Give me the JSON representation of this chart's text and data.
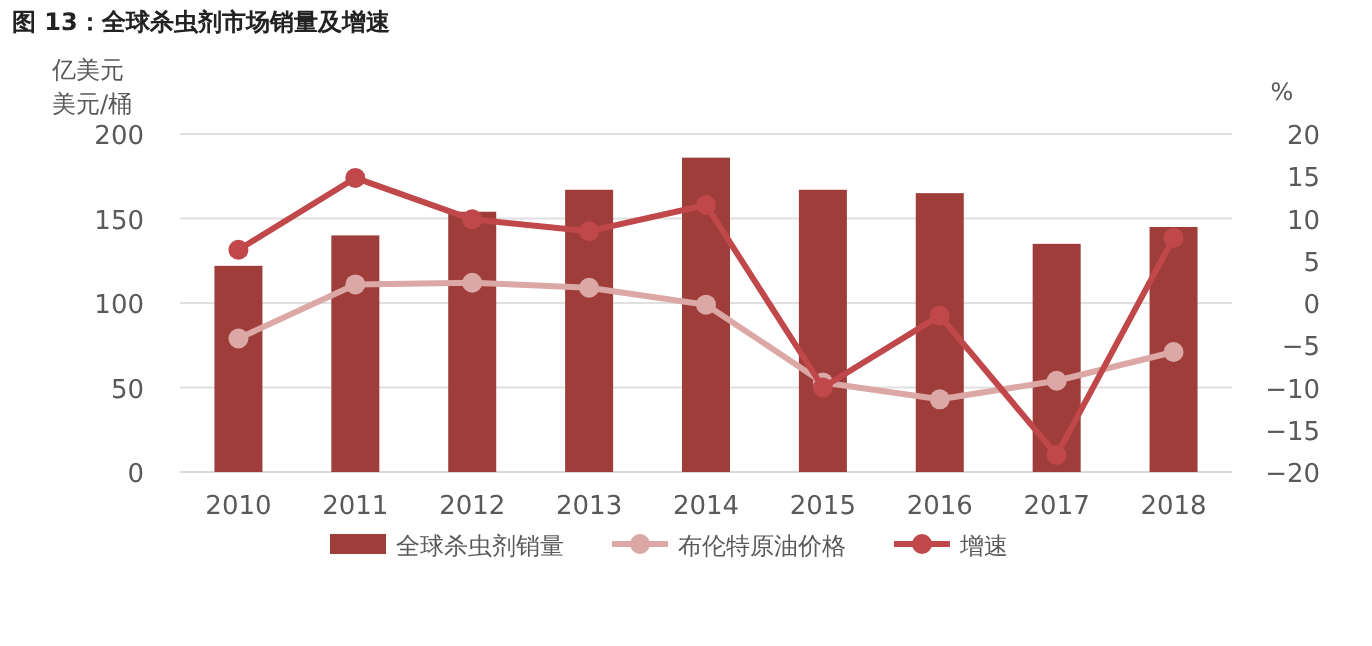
{
  "chart_data": {
    "type": "bar",
    "title": "**图 13：全球杀虫剂市场销量及增速**",
    "ylabel": "亿美元美元/桶",
    "y2label": "%",
    "categories": [
      "2010",
      "2011",
      "2012",
      "2013",
      "2014",
      "2015",
      "2016",
      "2017",
      "2018"
    ],
    "series": [
      {
        "name": "全球杀虫剂销量",
        "color": "#9e3d3a",
        "values": [
          122,
          140,
          154,
          167,
          186,
          167,
          165,
          135,
          145
        ]
      },
      {
        "name": "布伦特原油价格",
        "type": "line",
        "color": "#dba8a6",
        "values": [
          79,
          111,
          112,
          109,
          99,
          53,
          43,
          54,
          71
        ]
      },
      {
        "name": "增速",
        "type": "line",
        "axis": "y2",
        "color": "#c0474a",
        "values": [
          6.3,
          14.8,
          9.9,
          8.5,
          11.6,
          -10,
          -1.5,
          -18,
          7.7
        ]
      }
    ],
    "ylim": [
      0,
      200
    ],
    "yticks": [
      0,
      50,
      100,
      150,
      200
    ],
    "y2lim": [
      -20,
      20
    ],
    "y2ticks": [
      -20,
      -15,
      -10,
      -5,
      0,
      5,
      10,
      15,
      20
    ],
    "grid": "y",
    "legend": "bottom",
    "marker": "circle"
  }
}
